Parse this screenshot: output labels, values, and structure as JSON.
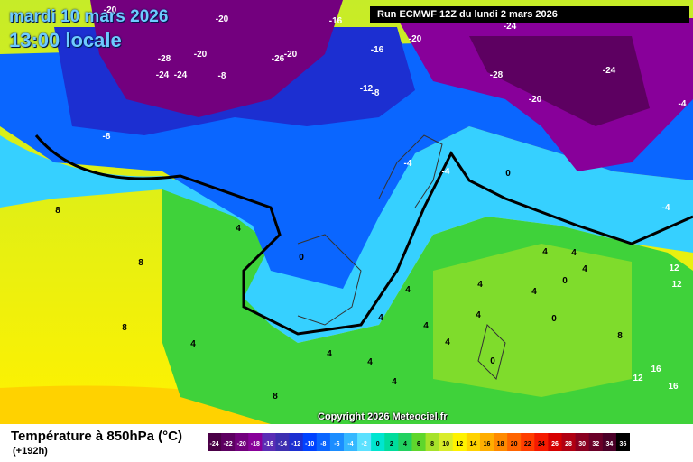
{
  "header": {
    "date": "mardi 10 mars 2026",
    "time": "13:00 locale",
    "run": "Run ECMWF 12Z du lundi 2 mars 2026"
  },
  "copyright": "Copyright 2026 Meteociel.fr",
  "footer": {
    "title": "Température à 850hPa (°C)",
    "lead": "(+192h)"
  },
  "legend": {
    "values": [
      "-24",
      "-22",
      "-20",
      "-18",
      "-16",
      "-14",
      "-12",
      "-10",
      "-8",
      "-6",
      "-4",
      "-2",
      "0",
      "2",
      "4",
      "6",
      "8",
      "10",
      "12",
      "14",
      "16",
      "18",
      "20",
      "22",
      "24",
      "26",
      "28",
      "30",
      "32",
      "34",
      "36"
    ],
    "colors": [
      "#4a0046",
      "#5d0061",
      "#73007e",
      "#88009a",
      "#5a2db5",
      "#3d2fb0",
      "#1c2fd1",
      "#0042ff",
      "#0a66ff",
      "#1b8dff",
      "#36b8ff",
      "#5ce1ff",
      "#00e5d0",
      "#00dc9c",
      "#22d160",
      "#5fd62c",
      "#a6e22a",
      "#d9ec2a",
      "#fff200",
      "#ffd200",
      "#ffae00",
      "#ff8a00",
      "#ff6400",
      "#ff3e00",
      "#f51a00",
      "#d60000",
      "#b00012",
      "#8a0020",
      "#6a0028",
      "#4a0028",
      "#000000"
    ]
  },
  "isotherms": [
    {
      "text": "-20",
      "color": "white"
    },
    {
      "text": "-28",
      "color": "white"
    },
    {
      "text": "-24",
      "color": "white"
    },
    {
      "text": "-24",
      "color": "white"
    },
    {
      "text": "-20",
      "color": "white"
    },
    {
      "text": "-20",
      "color": "white"
    },
    {
      "text": "-8",
      "color": "white"
    },
    {
      "text": "-26",
      "color": "white"
    },
    {
      "text": "-20",
      "color": "white"
    },
    {
      "text": "-16",
      "color": "white"
    },
    {
      "text": "-16",
      "color": "white"
    },
    {
      "text": "-12",
      "color": "white"
    },
    {
      "text": "-8",
      "color": "white"
    },
    {
      "text": "-20",
      "color": "white"
    },
    {
      "text": "-24",
      "color": "white"
    },
    {
      "text": "-28",
      "color": "white"
    },
    {
      "text": "-24",
      "color": "white"
    },
    {
      "text": "-20",
      "color": "white"
    },
    {
      "text": "-4",
      "color": "white"
    },
    {
      "text": "-8",
      "color": "white"
    },
    {
      "text": "-4",
      "color": "white"
    },
    {
      "text": "-4",
      "color": "white"
    },
    {
      "text": "-4",
      "color": "white"
    },
    {
      "text": "0",
      "color": "black"
    },
    {
      "text": "0",
      "color": "black"
    },
    {
      "text": "8",
      "color": "black"
    },
    {
      "text": "4",
      "color": "black"
    },
    {
      "text": "8",
      "color": "black"
    },
    {
      "text": "8",
      "color": "black"
    },
    {
      "text": "4",
      "color": "black"
    },
    {
      "text": "0",
      "color": "black"
    },
    {
      "text": "4",
      "color": "black"
    },
    {
      "text": "4",
      "color": "black"
    },
    {
      "text": "4",
      "color": "black"
    },
    {
      "text": "4",
      "color": "black"
    },
    {
      "text": "4",
      "color": "black"
    },
    {
      "text": "0",
      "color": "black"
    },
    {
      "text": "4",
      "color": "black"
    },
    {
      "text": "4",
      "color": "black"
    },
    {
      "text": "4",
      "color": "black"
    },
    {
      "text": "0",
      "color": "black"
    },
    {
      "text": "4",
      "color": "black"
    },
    {
      "text": "4",
      "color": "black"
    },
    {
      "text": "8",
      "color": "black"
    },
    {
      "text": "12",
      "color": "white"
    },
    {
      "text": "12",
      "color": "white"
    },
    {
      "text": "12",
      "color": "white"
    },
    {
      "text": "16",
      "color": "white"
    },
    {
      "text": "16",
      "color": "white"
    },
    {
      "text": "8",
      "color": "black"
    },
    {
      "text": "4",
      "color": "black"
    },
    {
      "text": "4",
      "color": "black"
    },
    {
      "text": "4",
      "color": "black"
    },
    {
      "text": "0",
      "color": "black"
    }
  ]
}
